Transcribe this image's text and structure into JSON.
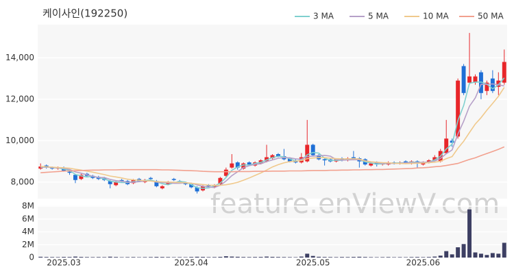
{
  "chart_data": [
    {
      "type": "candlestick",
      "title": "케이사인(192250)",
      "watermark": "feature.enViewV.com",
      "categories": [
        null,
        null,
        null,
        null,
        "2025.03",
        null,
        null,
        null,
        null,
        null,
        null,
        null,
        null,
        null,
        null,
        null,
        null,
        null,
        null,
        null,
        null,
        null,
        null,
        null,
        null,
        null,
        "2025.04",
        null,
        null,
        null,
        null,
        null,
        null,
        null,
        null,
        null,
        null,
        null,
        null,
        null,
        null,
        null,
        null,
        null,
        null,
        null,
        null,
        "2025.05",
        null,
        null,
        null,
        null,
        null,
        null,
        null,
        null,
        null,
        null,
        null,
        null,
        null,
        null,
        null,
        null,
        null,
        null,
        "2025.06",
        null,
        null,
        null,
        null,
        null,
        null,
        null,
        null,
        null,
        null,
        null,
        null,
        null,
        null
      ],
      "open": [
        8650,
        8800,
        8700,
        8650,
        8700,
        8500,
        8350,
        8150,
        8400,
        8300,
        8250,
        8200,
        8050,
        7850,
        8100,
        8050,
        7950,
        8150,
        8000,
        8200,
        8050,
        7700,
        7900,
        8150,
        8050,
        7950,
        7900,
        7750,
        7600,
        7850,
        7750,
        7900,
        8300,
        8700,
        8950,
        8650,
        8950,
        8800,
        8900,
        9000,
        9150,
        9350,
        9250,
        9150,
        9050,
        8950,
        9000,
        9800,
        9300,
        9100,
        9100,
        9000,
        9150,
        9050,
        9200,
        9150,
        9100,
        8800,
        8950,
        8850,
        8850,
        8950,
        8900,
        9000,
        8900,
        9000,
        8850,
        8950,
        9050,
        9000,
        9400,
        10000,
        10200,
        13600,
        12800,
        12800,
        13300,
        12400,
        13000,
        12600,
        12800
      ],
      "high": [
        8900,
        8850,
        8750,
        8750,
        8750,
        8550,
        8400,
        8400,
        8450,
        8350,
        8300,
        8250,
        8100,
        8050,
        8150,
        8100,
        8150,
        8200,
        8150,
        8250,
        8100,
        7850,
        8050,
        8200,
        8100,
        8000,
        7950,
        7800,
        7850,
        7900,
        7900,
        8250,
        8700,
        9350,
        9000,
        8950,
        9000,
        9000,
        9100,
        9800,
        9350,
        9400,
        9600,
        9200,
        9100,
        9400,
        11000,
        9850,
        9350,
        9150,
        9150,
        9150,
        9200,
        9200,
        9500,
        9200,
        9150,
        8950,
        9000,
        8950,
        9000,
        9000,
        9000,
        9050,
        9050,
        9050,
        9000,
        9100,
        9300,
        9600,
        11000,
        10100,
        13000,
        13700,
        15200,
        13200,
        13400,
        12900,
        13400,
        13300,
        14400
      ],
      "low": [
        8600,
        8650,
        8600,
        8600,
        8500,
        8350,
        7950,
        8100,
        8250,
        8150,
        8100,
        8050,
        7700,
        7800,
        8000,
        7850,
        7900,
        8000,
        7950,
        8100,
        7750,
        7650,
        7850,
        8050,
        7950,
        7850,
        7700,
        7450,
        7550,
        7750,
        7700,
        7850,
        8250,
        8650,
        8600,
        8600,
        8800,
        8750,
        8850,
        8950,
        9100,
        9200,
        9050,
        8950,
        8900,
        8900,
        8950,
        9250,
        9050,
        8800,
        8950,
        8950,
        9000,
        9000,
        9050,
        8700,
        8800,
        8750,
        8750,
        8800,
        8800,
        8850,
        8850,
        8900,
        8850,
        8700,
        8800,
        8900,
        9000,
        8950,
        9350,
        9700,
        10100,
        12200,
        12700,
        12700,
        12000,
        12200,
        12300,
        12200,
        12700
      ],
      "close": [
        8750,
        8700,
        8650,
        8700,
        8550,
        8450,
        8100,
        8350,
        8300,
        8200,
        8150,
        8100,
        7900,
        8000,
        8050,
        7900,
        8100,
        8050,
        8100,
        8150,
        7800,
        7800,
        8000,
        8100,
        8000,
        7900,
        7750,
        7550,
        7800,
        7800,
        7850,
        8200,
        8600,
        8900,
        8700,
        8900,
        8850,
        8950,
        9050,
        9200,
        9300,
        9250,
        9100,
        9000,
        8950,
        9200,
        9800,
        9300,
        9100,
        9050,
        9000,
        9100,
        9050,
        9150,
        9100,
        9000,
        8850,
        8900,
        8850,
        8900,
        8950,
        8900,
        8950,
        8950,
        9000,
        8900,
        8950,
        9050,
        9200,
        9500,
        10100,
        9900,
        12900,
        12300,
        13100,
        13100,
        12300,
        12800,
        12400,
        12900,
        13800
      ],
      "up_color": "#e8262a",
      "down_color": "#1f6fd6",
      "series": [
        {
          "name": "3 MA",
          "color": "#7fd0cf",
          "values": [
            8700,
            8720,
            8700,
            8680,
            8630,
            8570,
            8370,
            8300,
            8250,
            8280,
            8220,
            8150,
            8050,
            8000,
            7980,
            7980,
            8020,
            8020,
            8080,
            8100,
            8020,
            7920,
            7870,
            7970,
            8030,
            8000,
            7880,
            7730,
            7700,
            7720,
            7820,
            7950,
            8220,
            8570,
            8730,
            8830,
            8820,
            8900,
            8950,
            9070,
            9180,
            9250,
            9220,
            9120,
            9020,
            9050,
            9320,
            9430,
            9400,
            9150,
            9050,
            9050,
            9050,
            9100,
            9100,
            9080,
            8980,
            8920,
            8870,
            8880,
            8900,
            8920,
            8930,
            8930,
            8970,
            8950,
            8950,
            8970,
            9070,
            9250,
            9600,
            9830,
            10970,
            11700,
            12770,
            12830,
            12830,
            12730,
            12500,
            12700,
            13030
          ]
        },
        {
          "name": "5 MA",
          "color": "#b6a0c8",
          "values": [
            8720,
            8720,
            8700,
            8690,
            8670,
            8610,
            8490,
            8430,
            8350,
            8280,
            8220,
            8220,
            8130,
            8070,
            8040,
            7990,
            7990,
            8020,
            8050,
            8060,
            8000,
            7980,
            7970,
            7940,
            7940,
            7960,
            7950,
            7860,
            7800,
            7760,
            7740,
            7840,
            8050,
            8310,
            8500,
            8700,
            8790,
            8860,
            8880,
            8990,
            9070,
            9150,
            9180,
            9170,
            9120,
            9100,
            9230,
            9250,
            9270,
            9290,
            9250,
            9090,
            9060,
            9070,
            9080,
            9080,
            9030,
            8980,
            8940,
            8900,
            8900,
            8900,
            8910,
            8930,
            8940,
            8940,
            8950,
            8970,
            9020,
            9140,
            9370,
            9550,
            10320,
            10940,
            11660,
            12060,
            12720,
            12720,
            12740,
            12700,
            12640
          ]
        },
        {
          "name": "10 MA",
          "color": "#f0c98c",
          "values": [
            8750,
            8740,
            8720,
            8700,
            8690,
            8670,
            8620,
            8580,
            8530,
            8480,
            8420,
            8360,
            8290,
            8250,
            8200,
            8140,
            8110,
            8090,
            8060,
            8050,
            8020,
            8010,
            8000,
            7990,
            7980,
            7970,
            7940,
            7910,
            7880,
            7850,
            7840,
            7840,
            7870,
            7920,
            7990,
            8090,
            8200,
            8320,
            8440,
            8580,
            8730,
            8840,
            8930,
            8990,
            9010,
            9040,
            9130,
            9160,
            9180,
            9180,
            9150,
            9130,
            9120,
            9120,
            9130,
            9110,
            9020,
            8980,
            8960,
            8940,
            8930,
            8910,
            8900,
            8890,
            8900,
            8910,
            8920,
            8940,
            8960,
            9010,
            9130,
            9230,
            9630,
            9970,
            10390,
            10800,
            11110,
            11470,
            11800,
            12140,
            12570
          ]
        },
        {
          "name": "50 MA",
          "color": "#f2a08e",
          "values": [
            8450,
            8470,
            8490,
            8510,
            8530,
            8540,
            8550,
            8560,
            8570,
            8580,
            8580,
            8590,
            8590,
            8590,
            8600,
            8600,
            8600,
            8600,
            8600,
            8600,
            8600,
            8590,
            8590,
            8580,
            8570,
            8560,
            8550,
            8540,
            8520,
            8510,
            8500,
            8500,
            8500,
            8500,
            8510,
            8510,
            8510,
            8520,
            8520,
            8520,
            8530,
            8530,
            8530,
            8540,
            8540,
            8540,
            8550,
            8560,
            8560,
            8560,
            8570,
            8570,
            8580,
            8580,
            8590,
            8590,
            8600,
            8600,
            8610,
            8610,
            8620,
            8630,
            8640,
            8650,
            8660,
            8680,
            8690,
            8710,
            8740,
            8760,
            8800,
            8850,
            8900,
            9000,
            9090,
            9170,
            9280,
            9380,
            9480,
            9580,
            9700
          ]
        }
      ],
      "ylim": [
        7200,
        15600
      ],
      "yticks": [
        {
          "value": 8000,
          "label": "8,000"
        },
        {
          "value": 10000,
          "label": "10,000"
        },
        {
          "value": 12000,
          "label": "12,000"
        },
        {
          "value": 14000,
          "label": "14,000"
        }
      ],
      "grid": true
    },
    {
      "type": "bar",
      "color": "#3d3f63",
      "values": [
        120000,
        90000,
        80000,
        70000,
        100000,
        90000,
        150000,
        100000,
        80000,
        70000,
        80000,
        70000,
        130000,
        90000,
        60000,
        70000,
        80000,
        60000,
        70000,
        80000,
        100000,
        90000,
        80000,
        60000,
        70000,
        60000,
        90000,
        120000,
        100000,
        70000,
        80000,
        110000,
        200000,
        150000,
        120000,
        90000,
        80000,
        90000,
        100000,
        150000,
        110000,
        90000,
        80000,
        70000,
        60000,
        150000,
        600000,
        250000,
        120000,
        90000,
        80000,
        70000,
        90000,
        80000,
        100000,
        120000,
        90000,
        70000,
        60000,
        70000,
        80000,
        60000,
        70000,
        60000,
        80000,
        90000,
        70000,
        90000,
        150000,
        300000,
        1000000,
        500000,
        1600000,
        2100000,
        7500000,
        800000,
        600000,
        400000,
        700000,
        600000,
        2300000
      ],
      "ylim": [
        0,
        8000000
      ],
      "yticks": [
        0,
        {
          "value": 2000000,
          "label": "2M"
        },
        {
          "value": 4000000,
          "label": "4M"
        },
        {
          "value": 6000000,
          "label": "6M"
        },
        {
          "value": 8000000,
          "label": "8M"
        }
      ],
      "grid": true
    }
  ]
}
